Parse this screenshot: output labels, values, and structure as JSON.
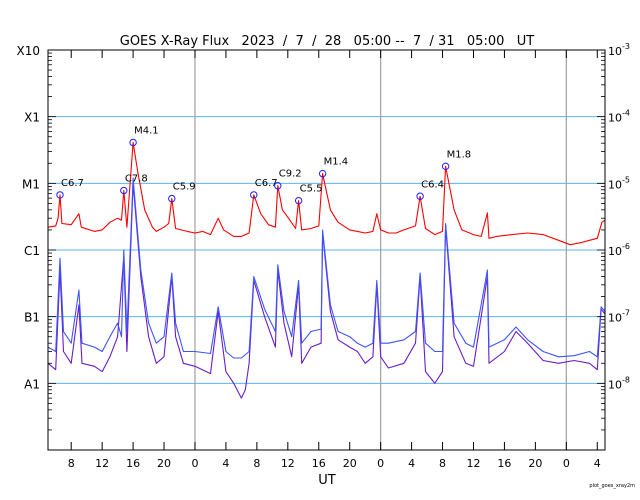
{
  "chart_data": {
    "type": "line",
    "title": "GOES X-Ray Flux   2023  /  7  /  28   05:00 --  7  / 31   05:00   UT",
    "xlabel": "UT",
    "x_unit": "hours since 2023-07-28 05:00 UT",
    "xlim": [
      0,
      72
    ],
    "ylim": [
      1e-09,
      0.001
    ],
    "yscale": "log",
    "grid": true,
    "footer": "plot_goes_xray2m",
    "x_ticks": [
      {
        "h": 3,
        "label": "8"
      },
      {
        "h": 7,
        "label": "12"
      },
      {
        "h": 11,
        "label": "16"
      },
      {
        "h": 15,
        "label": "20"
      },
      {
        "h": 19,
        "label": "0"
      },
      {
        "h": 23,
        "label": "4"
      },
      {
        "h": 27,
        "label": "8"
      },
      {
        "h": 31,
        "label": "12"
      },
      {
        "h": 35,
        "label": "16"
      },
      {
        "h": 39,
        "label": "20"
      },
      {
        "h": 43,
        "label": "0"
      },
      {
        "h": 47,
        "label": "4"
      },
      {
        "h": 51,
        "label": "8"
      },
      {
        "h": 55,
        "label": "12"
      },
      {
        "h": 59,
        "label": "16"
      },
      {
        "h": 63,
        "label": "20"
      },
      {
        "h": 67,
        "label": "0"
      },
      {
        "h": 71,
        "label": "4"
      }
    ],
    "day_boundaries": [
      19,
      43,
      67
    ],
    "left_labels": [
      {
        "value": 0.001,
        "label": "X10"
      },
      {
        "value": 0.0001,
        "label": "X1"
      },
      {
        "value": 1e-05,
        "label": "M1"
      },
      {
        "value": 1e-06,
        "label": "C1"
      },
      {
        "value": 1e-07,
        "label": "B1"
      },
      {
        "value": 1e-08,
        "label": "A1"
      }
    ],
    "right_labels": [
      {
        "value": 0.001,
        "base": "10",
        "exp": "-3"
      },
      {
        "value": 0.0001,
        "base": "10",
        "exp": "-4"
      },
      {
        "value": 1e-05,
        "base": "10",
        "exp": "-5"
      },
      {
        "value": 1e-06,
        "base": "10",
        "exp": "-6"
      },
      {
        "value": 1e-07,
        "base": "10",
        "exp": "-7"
      },
      {
        "value": 1e-08,
        "base": "10",
        "exp": "-8"
      }
    ],
    "grid_values": [
      0.0001,
      1e-05,
      1e-06,
      1e-07,
      1e-08
    ],
    "colors": {
      "long": "#ff0000",
      "short": "#3c55ff",
      "short2": "#6a1cc8",
      "grid": "#5ab4f0",
      "day": "#a0a0a0",
      "marker": "#2020ff"
    },
    "flares": [
      {
        "h": 1.55,
        "value": 6.7e-06,
        "label": "C6.7"
      },
      {
        "h": 9.8,
        "value": 7.8e-06,
        "label": "C7.8"
      },
      {
        "h": 11.0,
        "value": 4.1e-05,
        "label": "M4.1"
      },
      {
        "h": 16.0,
        "value": 5.9e-06,
        "label": "C5.9"
      },
      {
        "h": 26.6,
        "value": 6.7e-06,
        "label": "C6.7"
      },
      {
        "h": 29.7,
        "value": 9.2e-06,
        "label": "C9.2"
      },
      {
        "h": 32.4,
        "value": 5.5e-06,
        "label": "C5.5"
      },
      {
        "h": 35.5,
        "value": 1.4e-05,
        "label": "M1.4"
      },
      {
        "h": 48.1,
        "value": 6.4e-06,
        "label": "C6.4"
      },
      {
        "h": 51.4,
        "value": 1.8e-05,
        "label": "M1.8"
      }
    ],
    "series": [
      {
        "name": "long",
        "points": [
          [
            0,
            2.2e-06
          ],
          [
            1,
            2.3e-06
          ],
          [
            1.3,
            3e-06
          ],
          [
            1.55,
            6.7e-06
          ],
          [
            1.8,
            2.5e-06
          ],
          [
            3,
            2.4e-06
          ],
          [
            4,
            3.5e-06
          ],
          [
            4.3,
            2.2e-06
          ],
          [
            6,
            1.9e-06
          ],
          [
            7,
            2e-06
          ],
          [
            8,
            2.6e-06
          ],
          [
            9,
            3e-06
          ],
          [
            9.5,
            2.8e-06
          ],
          [
            9.8,
            7.8e-06
          ],
          [
            10.2,
            2.2e-06
          ],
          [
            11,
            4.1e-05
          ],
          [
            11.6,
            1.5e-05
          ],
          [
            12.5,
            4e-06
          ],
          [
            13.5,
            2.2e-06
          ],
          [
            14,
            1.9e-06
          ],
          [
            15,
            2.2e-06
          ],
          [
            15.6,
            2.5e-06
          ],
          [
            16,
            5.9e-06
          ],
          [
            16.5,
            2.1e-06
          ],
          [
            18,
            1.9e-06
          ],
          [
            19,
            1.8e-06
          ],
          [
            20,
            1.9e-06
          ],
          [
            21,
            1.7e-06
          ],
          [
            22,
            3e-06
          ],
          [
            22.7,
            2e-06
          ],
          [
            24,
            1.6e-06
          ],
          [
            25,
            1.6e-06
          ],
          [
            26,
            1.8e-06
          ],
          [
            26.6,
            6.7e-06
          ],
          [
            27.5,
            3.5e-06
          ],
          [
            28.5,
            2.4e-06
          ],
          [
            29.4,
            2.2e-06
          ],
          [
            29.7,
            9.2e-06
          ],
          [
            30.3,
            4e-06
          ],
          [
            31,
            3.1e-06
          ],
          [
            32,
            2.1e-06
          ],
          [
            32.4,
            5.5e-06
          ],
          [
            32.8,
            2e-06
          ],
          [
            34,
            2.1e-06
          ],
          [
            35,
            2.3e-06
          ],
          [
            35.5,
            1.4e-05
          ],
          [
            36.5,
            4e-06
          ],
          [
            37.5,
            2.6e-06
          ],
          [
            39,
            2e-06
          ],
          [
            40,
            1.9e-06
          ],
          [
            41,
            1.8e-06
          ],
          [
            42,
            1.9e-06
          ],
          [
            42.5,
            3.5e-06
          ],
          [
            43,
            2e-06
          ],
          [
            44,
            1.8e-06
          ],
          [
            45,
            1.8e-06
          ],
          [
            46,
            2e-06
          ],
          [
            47.5,
            2.3e-06
          ],
          [
            48.1,
            6.4e-06
          ],
          [
            48.8,
            2.1e-06
          ],
          [
            50,
            1.7e-06
          ],
          [
            51,
            1.9e-06
          ],
          [
            51.4,
            1.8e-05
          ],
          [
            52.5,
            4e-06
          ],
          [
            53.5,
            2e-06
          ],
          [
            55,
            1.7e-06
          ],
          [
            56,
            1.6e-06
          ],
          [
            56.8,
            3.6e-06
          ],
          [
            57,
            1.5e-06
          ],
          [
            58,
            1.6e-06
          ],
          [
            60,
            1.7e-06
          ],
          [
            62,
            1.8e-06
          ],
          [
            64,
            1.7e-06
          ],
          [
            66,
            1.4e-06
          ],
          [
            67.5,
            1.2e-06
          ],
          [
            69,
            1.3e-06
          ],
          [
            70,
            1.4e-06
          ],
          [
            71,
            1.5e-06
          ],
          [
            71.6,
            2.6e-06
          ],
          [
            72,
            2.8e-06
          ]
        ]
      },
      {
        "name": "short2",
        "points": [
          [
            0,
            2e-08
          ],
          [
            1,
            1.6e-08
          ],
          [
            1.55,
            5e-07
          ],
          [
            2,
            3e-08
          ],
          [
            3,
            2e-08
          ],
          [
            4,
            1.5e-07
          ],
          [
            4.4,
            2e-08
          ],
          [
            6,
            1.8e-08
          ],
          [
            7,
            1.5e-08
          ],
          [
            8,
            2.5e-08
          ],
          [
            9,
            5e-08
          ],
          [
            9.8,
            8e-07
          ],
          [
            10.2,
            3e-08
          ],
          [
            11,
            1e-05
          ],
          [
            12,
            4e-07
          ],
          [
            13,
            5e-08
          ],
          [
            14,
            2e-08
          ],
          [
            15,
            2.5e-08
          ],
          [
            16,
            4e-07
          ],
          [
            16.5,
            5e-08
          ],
          [
            17.5,
            2e-08
          ],
          [
            19,
            1.8e-08
          ],
          [
            21,
            1.4e-08
          ],
          [
            22,
            1.2e-07
          ],
          [
            23,
            1.5e-08
          ],
          [
            24,
            1e-08
          ],
          [
            25,
            6e-09
          ],
          [
            25.5,
            8e-09
          ],
          [
            26,
            2e-08
          ],
          [
            26.6,
            3.5e-07
          ],
          [
            28,
            1e-07
          ],
          [
            29.4,
            3.5e-08
          ],
          [
            29.7,
            5e-07
          ],
          [
            30.5,
            8e-08
          ],
          [
            31.5,
            2.5e-08
          ],
          [
            32.4,
            3e-07
          ],
          [
            32.8,
            2e-08
          ],
          [
            34,
            3.5e-08
          ],
          [
            35.3,
            4e-08
          ],
          [
            35.5,
            1.8e-06
          ],
          [
            36.5,
            1.2e-07
          ],
          [
            37.5,
            4.5e-08
          ],
          [
            39,
            3.5e-08
          ],
          [
            40,
            3e-08
          ],
          [
            41,
            2e-08
          ],
          [
            42,
            2.5e-08
          ],
          [
            42.5,
            3e-07
          ],
          [
            43,
            2.5e-08
          ],
          [
            44,
            1.7e-08
          ],
          [
            46,
            2e-08
          ],
          [
            47.5,
            4e-08
          ],
          [
            48.1,
            4e-07
          ],
          [
            48.8,
            1.5e-08
          ],
          [
            50,
            1e-08
          ],
          [
            51,
            1.5e-08
          ],
          [
            51.4,
            2.3e-06
          ],
          [
            52.5,
            5e-08
          ],
          [
            54,
            2e-08
          ],
          [
            55,
            1.8e-08
          ],
          [
            56.8,
            4e-07
          ],
          [
            57,
            2e-08
          ],
          [
            59,
            3e-08
          ],
          [
            60.5,
            6e-08
          ],
          [
            62,
            4e-08
          ],
          [
            64,
            2.2e-08
          ],
          [
            66,
            2e-08
          ],
          [
            68,
            2.2e-08
          ],
          [
            70,
            2e-08
          ],
          [
            71,
            1.6e-08
          ],
          [
            71.5,
            1.3e-07
          ],
          [
            72,
            1.1e-07
          ]
        ]
      },
      {
        "name": "short",
        "points": [
          [
            0,
            3.5e-08
          ],
          [
            1,
            3e-08
          ],
          [
            1.55,
            7.5e-07
          ],
          [
            2,
            6e-08
          ],
          [
            3,
            4e-08
          ],
          [
            4,
            2.5e-07
          ],
          [
            4.4,
            4e-08
          ],
          [
            6,
            3.5e-08
          ],
          [
            7,
            3e-08
          ],
          [
            8,
            5e-08
          ],
          [
            9,
            8e-08
          ],
          [
            9.5,
            5e-08
          ],
          [
            9.8,
            1e-06
          ],
          [
            10.2,
            6e-08
          ],
          [
            11,
            1.2e-05
          ],
          [
            12,
            5e-07
          ],
          [
            13,
            8e-08
          ],
          [
            14,
            4e-08
          ],
          [
            15,
            5e-08
          ],
          [
            16,
            4.5e-07
          ],
          [
            16.5,
            8e-08
          ],
          [
            17.5,
            3e-08
          ],
          [
            19,
            3e-08
          ],
          [
            21,
            2.8e-08
          ],
          [
            22,
            1.4e-07
          ],
          [
            23,
            3e-08
          ],
          [
            24,
            2.4e-08
          ],
          [
            25,
            2.4e-08
          ],
          [
            26,
            3e-08
          ],
          [
            26.6,
            4e-07
          ],
          [
            28,
            1.3e-07
          ],
          [
            29.4,
            6e-08
          ],
          [
            29.7,
            6e-07
          ],
          [
            30.5,
            1.2e-07
          ],
          [
            31.5,
            5e-08
          ],
          [
            32.4,
            3.5e-07
          ],
          [
            32.8,
            4e-08
          ],
          [
            34,
            6e-08
          ],
          [
            35.3,
            6.5e-08
          ],
          [
            35.5,
            2e-06
          ],
          [
            36.5,
            1.5e-07
          ],
          [
            37.5,
            6e-08
          ],
          [
            39,
            5e-08
          ],
          [
            40,
            4e-08
          ],
          [
            41,
            3.5e-08
          ],
          [
            42,
            4e-08
          ],
          [
            42.5,
            3.5e-07
          ],
          [
            43,
            4e-08
          ],
          [
            44,
            4e-08
          ],
          [
            46,
            4.5e-08
          ],
          [
            47.5,
            6e-08
          ],
          [
            48.1,
            4.5e-07
          ],
          [
            48.8,
            4e-08
          ],
          [
            50,
            3e-08
          ],
          [
            51,
            3e-08
          ],
          [
            51.4,
            2.5e-06
          ],
          [
            52.5,
            8e-08
          ],
          [
            54,
            4e-08
          ],
          [
            55,
            3.5e-08
          ],
          [
            56.8,
            5e-07
          ],
          [
            57,
            3.5e-08
          ],
          [
            59,
            4.5e-08
          ],
          [
            60.5,
            7e-08
          ],
          [
            62,
            4.5e-08
          ],
          [
            64,
            3e-08
          ],
          [
            66,
            2.5e-08
          ],
          [
            68,
            2.6e-08
          ],
          [
            70,
            3e-08
          ],
          [
            71,
            2.5e-08
          ],
          [
            71.5,
            1.4e-07
          ],
          [
            72,
            1.2e-07
          ]
        ]
      }
    ]
  }
}
